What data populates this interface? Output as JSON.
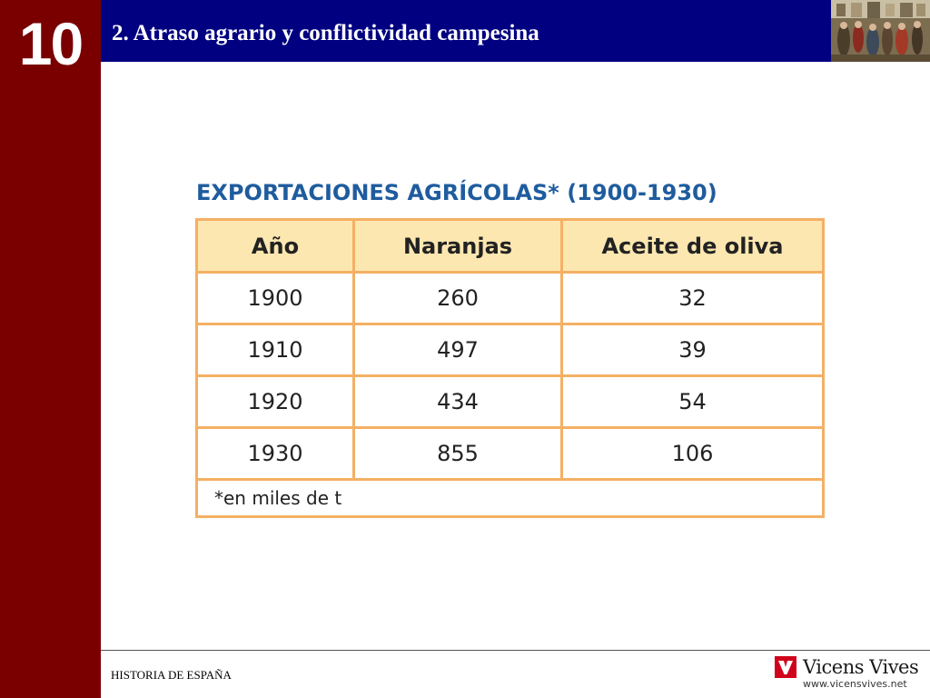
{
  "chapter": {
    "number": "10"
  },
  "header": {
    "title": "2. Atraso agrario y conflictividad campesina"
  },
  "table": {
    "title": "EXPORTACIONES AGRÍCOLAS* (1900-1930)",
    "columns": [
      "Año",
      "Naranjas",
      "Aceite de oliva"
    ],
    "rows": [
      [
        "1900",
        "260",
        "32"
      ],
      [
        "1910",
        "497",
        "39"
      ],
      [
        "1920",
        "434",
        "54"
      ],
      [
        "1930",
        "855",
        "106"
      ]
    ],
    "note": "*en miles de t"
  },
  "footer": {
    "left_text": "HISTORIA DE ESPAÑA",
    "brand": "Vicens Vives",
    "url": "www.vicensvives.net"
  },
  "colors": {
    "sidebar": "#7a0000",
    "header_bar": "#000080",
    "table_border": "#f4b064",
    "table_header_bg": "#fde7b0",
    "title_blue": "#1f5c9e",
    "brand_red": "#d0021b"
  }
}
